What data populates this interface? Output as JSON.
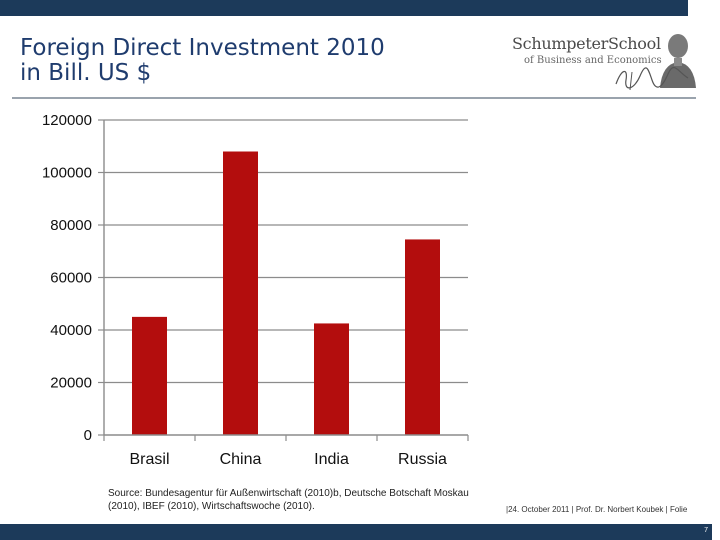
{
  "header": {
    "title_line1": "Foreign Direct Investment 2010",
    "title_line2": "in Bill. US $"
  },
  "logo": {
    "name": "SchumpeterSchool",
    "subtitle": "of Business and Economics"
  },
  "chart_data": {
    "type": "bar",
    "title": "Foreign Direct Investment 2010 in Bill. US $",
    "categories": [
      "Brasil",
      "China",
      "India",
      "Russia"
    ],
    "values": [
      45000,
      108000,
      42500,
      74500
    ],
    "ylim": [
      0,
      120000
    ],
    "yticks": [
      0,
      20000,
      40000,
      60000,
      80000,
      100000,
      120000
    ],
    "xlabel": "",
    "ylabel": "",
    "grid": true,
    "bar_color": "#b30d0d",
    "grid_color": "#8c8c8c"
  },
  "source": {
    "text": "Source: Bundesagentur für Außenwirtschaft (2010)b, Deutsche Botschaft Moskau (2010), IBEF (2010), Wirtschaftswoche (2010)."
  },
  "footer": {
    "info": "|24. October 2011 | Prof. Dr. Norbert Koubek | Folie",
    "page_number": "7"
  }
}
